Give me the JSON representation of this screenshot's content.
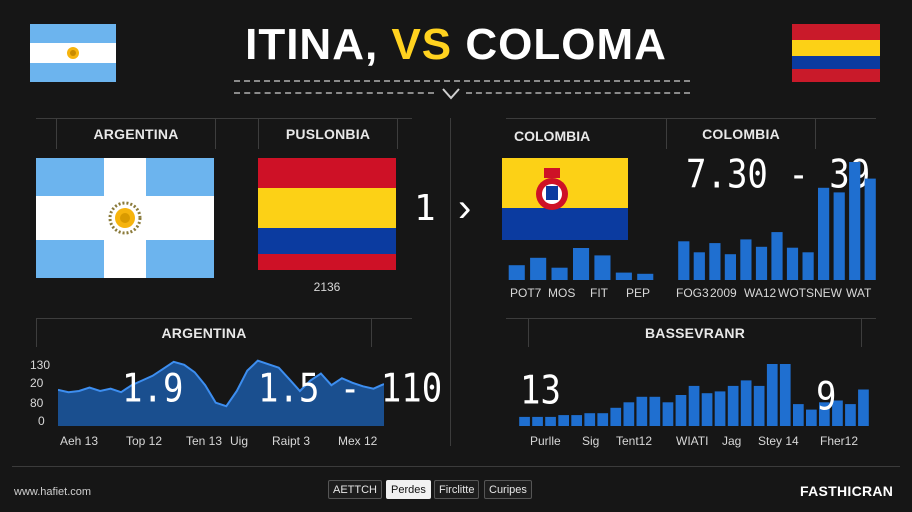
{
  "header": {
    "title_left": "ITINA,",
    "title_vs": "VS",
    "title_right": "COLOMA"
  },
  "left": {
    "panel_label_1": "ARGENTINA",
    "panel_label_2": "PUSLONBIA",
    "flag_caption": "2136",
    "score_number": "1",
    "chart_label": "ARGENTINA",
    "chart": {
      "y_ticks": [
        "130",
        "20",
        "80",
        "0"
      ],
      "x_ticks": [
        "Aeh 13",
        "Top 12",
        "Ten 13",
        "Uig",
        "Raipt 3",
        "Mex 12"
      ],
      "annotation_1": "1.9",
      "annotation_2": "1.5 - 110"
    }
  },
  "right": {
    "panel_label_1": "COLOMBIA",
    "panel_label_2": "COLOMBIA",
    "arrow": "›",
    "score_range": "7.30 - 39",
    "small_chart": {
      "x_ticks": [
        "POT7",
        "MOS",
        "FIT",
        "PEP"
      ],
      "values": [
        12,
        18,
        10,
        26,
        20,
        6,
        5
      ]
    },
    "mid_chart": {
      "x_ticks": [
        "FOG3",
        "2009",
        "WA12",
        "WOTS",
        "NEW",
        "WAT"
      ],
      "values": [
        42,
        30,
        40,
        28,
        44,
        36,
        52,
        35,
        30,
        100,
        95,
        128,
        110
      ]
    },
    "bottom_label": "BASSEVRANR",
    "bottom_chart": {
      "annotation_1": "13",
      "annotation_2": "9",
      "x_ticks": [
        "Purlle",
        "Sig",
        "Tent12",
        "WIATI",
        "Jag",
        "Stey 14",
        "Fher12"
      ],
      "values": [
        10,
        10,
        10,
        12,
        12,
        14,
        14,
        20,
        26,
        32,
        32,
        26,
        34,
        44,
        36,
        38,
        44,
        50,
        44,
        68,
        68,
        24,
        18,
        26,
        28,
        24,
        40
      ]
    }
  },
  "left_area_series": [
    62,
    58,
    60,
    66,
    60,
    64,
    58,
    70,
    78,
    86,
    98,
    110,
    105,
    92,
    70,
    40,
    34,
    60,
    95,
    112,
    106,
    100,
    80,
    60,
    78,
    90,
    70,
    82,
    74,
    68,
    64,
    72
  ],
  "footer": {
    "brand_left": "www.hafiet.com",
    "buttons": [
      "AETTCH",
      "Perdes",
      "Firclitte",
      "Curipes"
    ],
    "brand_right": "FASTHICRAN"
  },
  "colors": {
    "accent": "#ffd21f",
    "bar": "#1f6fd0",
    "argentina_blue": "#6cb4ee",
    "colombia_yellow": "#fcd116",
    "colombia_blue": "#003893",
    "colombia_red": "#ce1126"
  }
}
